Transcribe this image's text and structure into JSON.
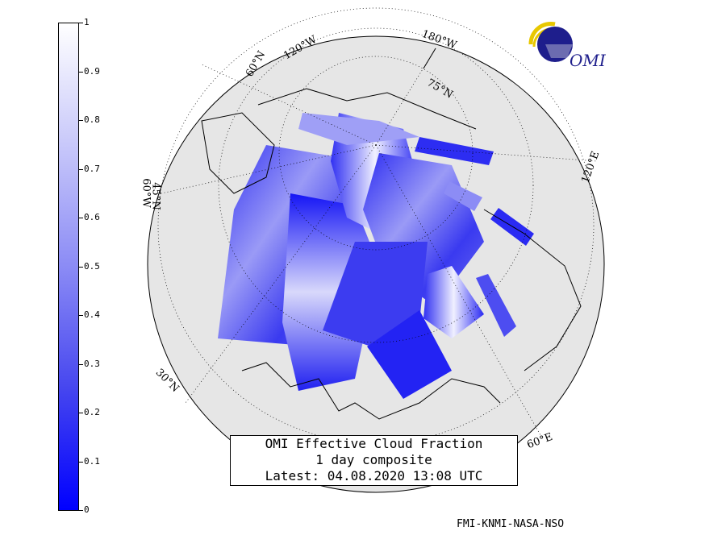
{
  "colorbar": {
    "ticks": [
      "1",
      "0.9",
      "0.8",
      "0.7",
      "0.6",
      "0.5",
      "0.4",
      "0.3",
      "0.2",
      "0.1",
      "0"
    ]
  },
  "title": {
    "line1": "OMI Effective Cloud Fraction",
    "line2": "1 day composite",
    "line3": "Latest: 04.08.2020 13:08 UTC"
  },
  "credit": "FMI-KNMI-NASA-NSO",
  "logo": {
    "text": "OMI",
    "icon": "omi-logo-icon"
  },
  "graticule_labels": {
    "lon_120w": "120°W",
    "lon_180w": "180°W",
    "lat_60n": "60°N",
    "lat_75n": "75°N",
    "lon_120e": "120°E",
    "lon_60e": "60°E",
    "lat_30n": "30°N",
    "lon_60w": "60°W",
    "lat_45n": "45°N"
  },
  "colors": {
    "globe": "#e6e6e6",
    "cloud_low": "#0000ff",
    "cloud_high": "#ffffff",
    "logo_blue": "#1e1e8c",
    "logo_yellow": "#e8c800"
  }
}
